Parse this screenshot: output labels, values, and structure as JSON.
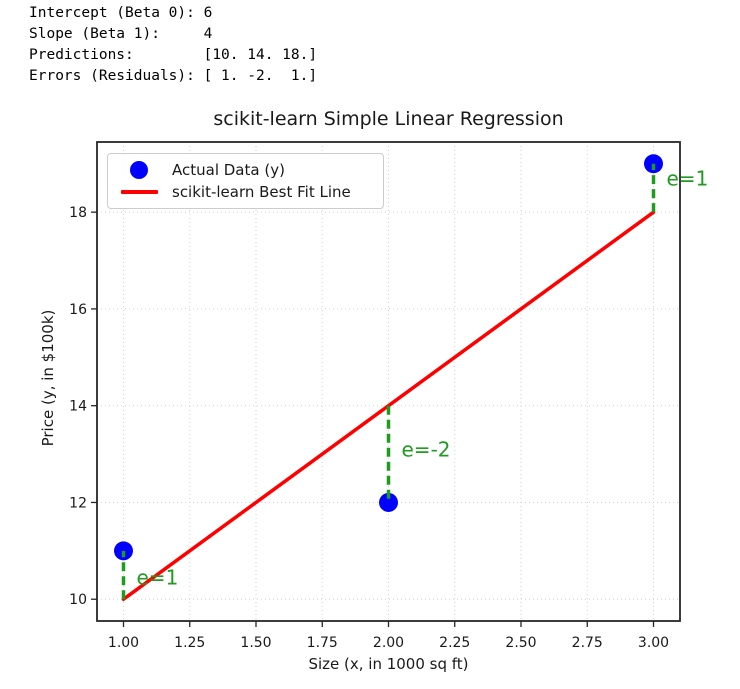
{
  "console_output": {
    "lines": [
      "Intercept (Beta 0): 6",
      "Slope (Beta 1):     4",
      "Predictions:        [10. 14. 18.]",
      "Errors (Residuals): [ 1. -2.  1.]"
    ]
  },
  "chart_data": {
    "type": "scatter",
    "title": "scikit-learn Simple Linear Regression",
    "xlabel": "Size (x, in 1000 sq ft)",
    "ylabel": "Price (y, in $100k)",
    "xlim": [
      0.9,
      3.1
    ],
    "ylim": [
      9.55,
      19.45
    ],
    "xticks": [
      1.0,
      1.25,
      1.5,
      1.75,
      2.0,
      2.25,
      2.5,
      2.75,
      3.0
    ],
    "xtick_labels": [
      "1.00",
      "1.25",
      "1.50",
      "1.75",
      "2.00",
      "2.25",
      "2.50",
      "2.75",
      "3.00"
    ],
    "yticks": [
      10,
      12,
      14,
      16,
      18
    ],
    "ytick_labels": [
      "10",
      "12",
      "14",
      "16",
      "18"
    ],
    "grid": true,
    "grid_style": "dotted",
    "grid_color": "#d2d2d2",
    "series": [
      {
        "name": "scikit-learn Best Fit Line",
        "type": "line",
        "color": "#ff0000",
        "x": [
          1,
          3
        ],
        "y": [
          10,
          18
        ]
      },
      {
        "name": "Actual Data (y)",
        "type": "scatter",
        "color": "#0000ff",
        "x": [
          1,
          2,
          3
        ],
        "y": [
          11,
          12,
          19
        ]
      }
    ],
    "residuals": {
      "color": "#1f9c1f",
      "line_style": "dashed",
      "items": [
        {
          "x": 1,
          "y_line": 10,
          "y_point": 11,
          "label": "e=1",
          "label_y": 10.3
        },
        {
          "x": 2,
          "y_line": 14,
          "y_point": 12,
          "label": "e=-2",
          "label_y": 12.95
        },
        {
          "x": 3,
          "y_line": 18,
          "y_point": 19,
          "label": "e=1",
          "label_y": 18.55
        }
      ]
    },
    "legend": {
      "position": "upper-left",
      "entries": [
        {
          "label": "Actual Data (y)",
          "marker": "circle",
          "color": "#0000ff"
        },
        {
          "label": "scikit-learn Best Fit Line",
          "marker": "line",
          "color": "#ff0000"
        }
      ]
    }
  }
}
